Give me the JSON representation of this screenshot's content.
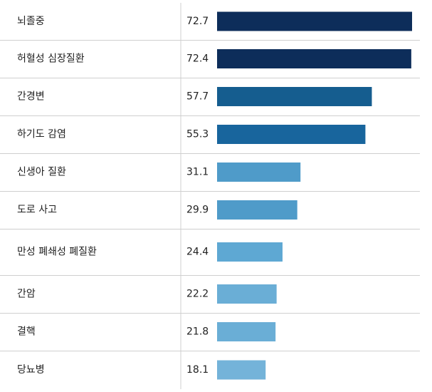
{
  "chart_data": {
    "type": "bar",
    "orientation": "horizontal",
    "categories": [
      "뇌졸중",
      "허혈성 심장질환",
      "간경변",
      "하기도 감염",
      "신생아 질환",
      "도로 사고",
      "만성 폐쇄성 폐질환",
      "간암",
      "결핵",
      "당뇨병"
    ],
    "values": [
      72.7,
      72.4,
      57.7,
      55.3,
      31.1,
      29.9,
      24.4,
      22.2,
      21.8,
      18.1
    ],
    "value_labels": [
      "72.7",
      "72.4",
      "57.7",
      "55.3",
      "31.1",
      "29.9",
      "24.4",
      "22.2",
      "21.8",
      "18.1"
    ],
    "colors": [
      "#0d2d5a",
      "#0d2d5a",
      "#155d8f",
      "#18659d",
      "#4f9bc9",
      "#4f9bc9",
      "#5ea8d3",
      "#6aaed6",
      "#6aaed6",
      "#74b3d9"
    ],
    "xlim": [
      0,
      72.7
    ],
    "grid": false,
    "legend": "none"
  }
}
